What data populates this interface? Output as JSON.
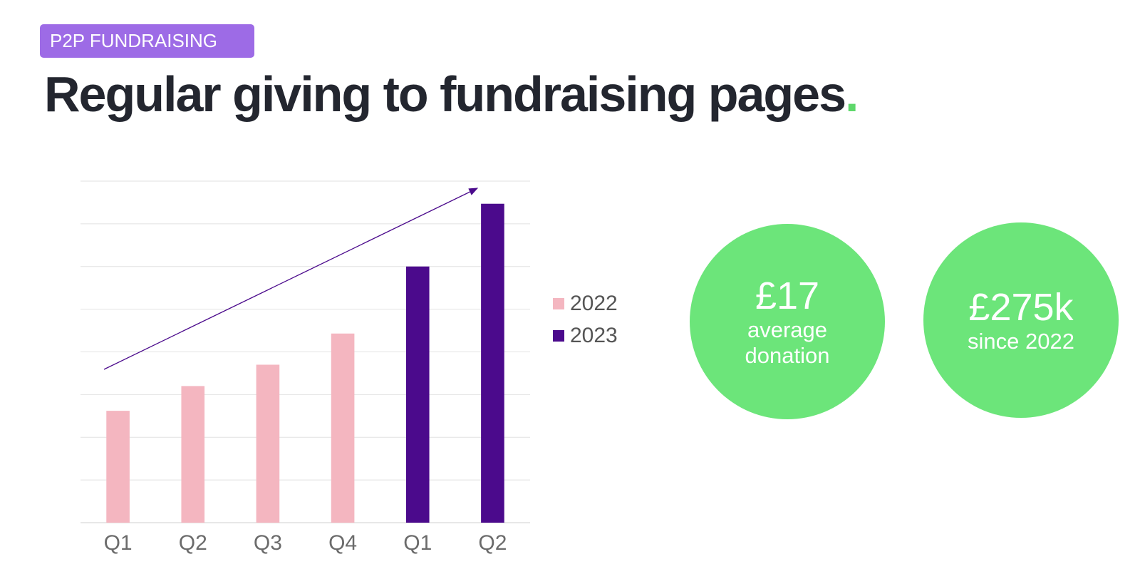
{
  "tag": "P2P FUNDRAISING",
  "title": "Regular giving to fundraising pages",
  "title_end": ".",
  "chart_data": {
    "type": "bar",
    "categories": [
      "Q1",
      "Q2",
      "Q3",
      "Q4",
      "Q1",
      "Q2"
    ],
    "series": [
      {
        "name": "2022",
        "color": "#f4b6c0",
        "values": [
          2.62,
          3.2,
          3.7,
          4.43,
          null,
          null
        ]
      },
      {
        "name": "2023",
        "color": "#4b0a8c",
        "values": [
          null,
          null,
          null,
          null,
          6.0,
          7.47
        ]
      }
    ],
    "ylim": [
      0,
      8
    ],
    "yticks": [
      0,
      1,
      2,
      3,
      4,
      5,
      6,
      7,
      8
    ],
    "grid": true
  },
  "stats": [
    {
      "value": "£17",
      "label": "average donation"
    },
    {
      "value": "£275k",
      "label": "since 2022"
    }
  ]
}
